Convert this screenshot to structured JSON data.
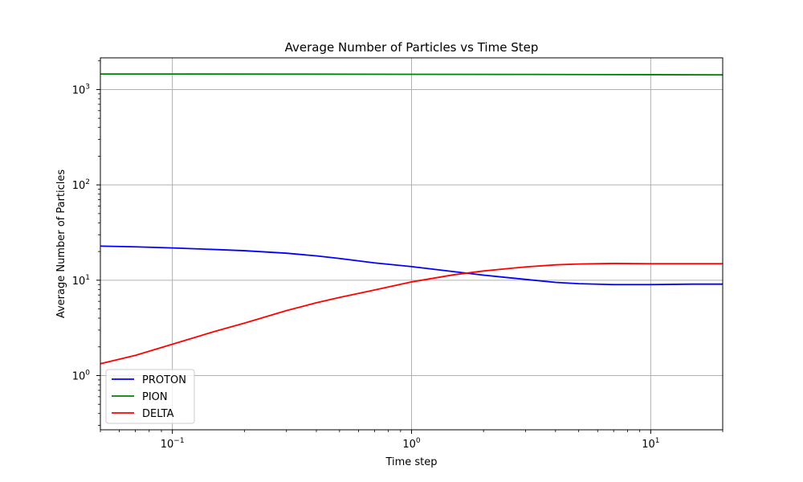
{
  "chart_data": {
    "type": "line",
    "title": "Average Number of Particles vs Time Step",
    "xlabel": "Time step",
    "ylabel": "Average Number of Particles",
    "xscale": "log",
    "yscale": "log",
    "xlim": [
      0.05,
      20
    ],
    "ylim": [
      0.27,
      2150
    ],
    "grid": true,
    "legend_position": "lower-left",
    "x_ticks": [
      {
        "value": 0.1,
        "base": "10",
        "exp": "−1"
      },
      {
        "value": 1,
        "base": "10",
        "exp": "0"
      },
      {
        "value": 10,
        "base": "10",
        "exp": "1"
      }
    ],
    "y_ticks": [
      {
        "value": 1,
        "base": "10",
        "exp": "0"
      },
      {
        "value": 10,
        "base": "10",
        "exp": "1"
      },
      {
        "value": 100,
        "base": "10",
        "exp": "2"
      },
      {
        "value": 1000,
        "base": "10",
        "exp": "3"
      }
    ],
    "series": [
      {
        "name": "PROTON",
        "color": "#0000ff",
        "x": [
          0.05,
          0.07,
          0.1,
          0.15,
          0.2,
          0.3,
          0.4,
          0.5,
          0.7,
          1.0,
          1.5,
          2.0,
          3.0,
          4.0,
          5.0,
          7.0,
          10.0,
          15.0,
          20.0
        ],
        "y": [
          22.8,
          22.4,
          21.8,
          21.0,
          20.4,
          19.2,
          18.0,
          16.9,
          15.2,
          13.9,
          12.3,
          11.3,
          10.2,
          9.5,
          9.2,
          9.0,
          9.0,
          9.1,
          9.1
        ]
      },
      {
        "name": "PION",
        "color": "#008000",
        "x": [
          0.05,
          0.1,
          0.3,
          1.0,
          3.0,
          10.0,
          20.0
        ],
        "y": [
          1455,
          1455,
          1450,
          1445,
          1440,
          1432,
          1425
        ]
      },
      {
        "name": "DELTA",
        "color": "#ff0000",
        "x": [
          0.05,
          0.07,
          0.1,
          0.15,
          0.2,
          0.3,
          0.4,
          0.5,
          0.7,
          1.0,
          1.5,
          2.0,
          3.0,
          4.0,
          5.0,
          7.0,
          10.0,
          15.0,
          20.0
        ],
        "y": [
          1.33,
          1.63,
          2.13,
          2.9,
          3.55,
          4.8,
          5.8,
          6.6,
          7.9,
          9.6,
          11.4,
          12.5,
          13.8,
          14.5,
          14.8,
          15.0,
          14.9,
          14.9,
          14.9
        ]
      }
    ]
  }
}
